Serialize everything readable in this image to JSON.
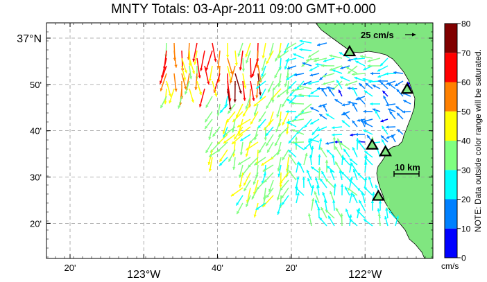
{
  "title": "MNTY Totals: 03-Apr-2011 09:00 GMT+0.000",
  "x_ticks": [
    {
      "lon": -123.333,
      "label": "20'"
    },
    {
      "lon": -123.0,
      "label": "123°W"
    },
    {
      "lon": -122.667,
      "label": "40'"
    },
    {
      "lon": -122.333,
      "label": "20'"
    },
    {
      "lon": -122.0,
      "label": "122°W"
    }
  ],
  "y_ticks": [
    {
      "lat": 37.0,
      "label": "37°N"
    },
    {
      "lat": 36.8333,
      "label": "50'"
    },
    {
      "lat": 36.6667,
      "label": "40'"
    },
    {
      "lat": 36.5,
      "label": "30'"
    },
    {
      "lat": 36.3333,
      "label": "20'"
    }
  ],
  "colorbar": {
    "ticks": [
      "0",
      "10",
      "20",
      "30",
      "40",
      "50",
      "60",
      "70",
      "80"
    ],
    "unit": "cm/s",
    "note": "NOTE: Data outside color range will be saturated.",
    "colors": [
      "#0000ff",
      "#0080ff",
      "#00ffff",
      "#80ff80",
      "#ffff00",
      "#ff8000",
      "#ff0000",
      "#800000"
    ]
  },
  "scale_vector": {
    "label": "25 cm/s"
  },
  "scale_distance": {
    "label": "10 km"
  },
  "colors": {
    "land": "#80e680",
    "grid": "#999999",
    "site_fill": "#80e680"
  },
  "sites": [
    {
      "name": "site-1",
      "lon": -122.07,
      "lat": 36.95
    },
    {
      "name": "site-2",
      "lon": -121.81,
      "lat": 36.815
    },
    {
      "name": "site-3",
      "lon": -121.968,
      "lat": 36.614
    },
    {
      "name": "site-4",
      "lon": -121.908,
      "lat": 36.59
    },
    {
      "name": "site-5",
      "lon": -121.94,
      "lat": 36.43
    }
  ]
}
